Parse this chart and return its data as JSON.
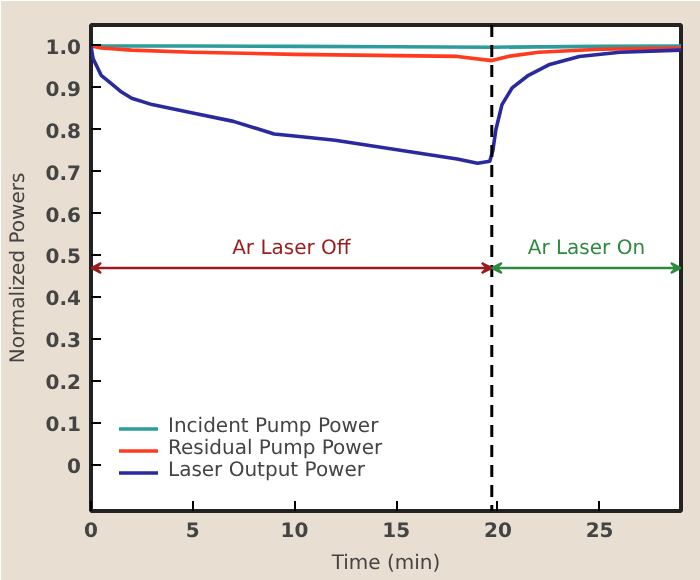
{
  "chart_data": {
    "type": "line",
    "xlabel": "Time (min)",
    "ylabel": "Normalized Powers",
    "xlim": [
      0,
      29
    ],
    "ylim": [
      -0.11,
      1.05
    ],
    "xticks": [
      0,
      5,
      10,
      15,
      20,
      25
    ],
    "yticks": [
      0,
      0.1,
      0.2,
      0.3,
      0.4,
      0.5,
      0.6,
      0.7,
      0.8,
      0.9,
      {
        "value": 1.0,
        "label": "1.0"
      }
    ],
    "grid": false,
    "legend": "bottom left",
    "marker": "none",
    "line_style": "solid",
    "ref_lines": [
      {
        "axis": "x",
        "value": 19.7,
        "color": "#000000",
        "line_style": "dashed"
      }
    ],
    "annotations": [
      "Ar Laser Off",
      "Ar Laser On"
    ],
    "series": [
      {
        "name": "Incident Pump Power",
        "color": "#2e9c9c",
        "x": [
          0,
          5,
          10,
          15,
          19.7,
          25,
          29
        ],
        "values": [
          1.0,
          1.0,
          0.999,
          0.998,
          0.997,
          0.999,
          1.0
        ]
      },
      {
        "name": "Residual Pump Power",
        "color": "#ff3b1f",
        "x": [
          0,
          0.5,
          2,
          5,
          10,
          15,
          18,
          19.7,
          20.5,
          22,
          25,
          29
        ],
        "values": [
          1.0,
          0.995,
          0.99,
          0.985,
          0.98,
          0.977,
          0.975,
          0.965,
          0.975,
          0.985,
          0.992,
          0.995
        ]
      },
      {
        "name": "Laser Output Power",
        "color": "#2a2aa0",
        "x": [
          0,
          0.1,
          0.5,
          1,
          1.5,
          2,
          3,
          5,
          7,
          9,
          10,
          12,
          14,
          16,
          18,
          19,
          19.6,
          19.75,
          19.9,
          20.2,
          20.7,
          21.5,
          22.5,
          24,
          26,
          29
        ],
        "values": [
          1.0,
          0.97,
          0.93,
          0.91,
          0.89,
          0.875,
          0.86,
          0.84,
          0.82,
          0.79,
          0.785,
          0.775,
          0.76,
          0.745,
          0.73,
          0.72,
          0.725,
          0.75,
          0.8,
          0.86,
          0.9,
          0.93,
          0.955,
          0.975,
          0.985,
          0.99
        ]
      }
    ]
  }
}
